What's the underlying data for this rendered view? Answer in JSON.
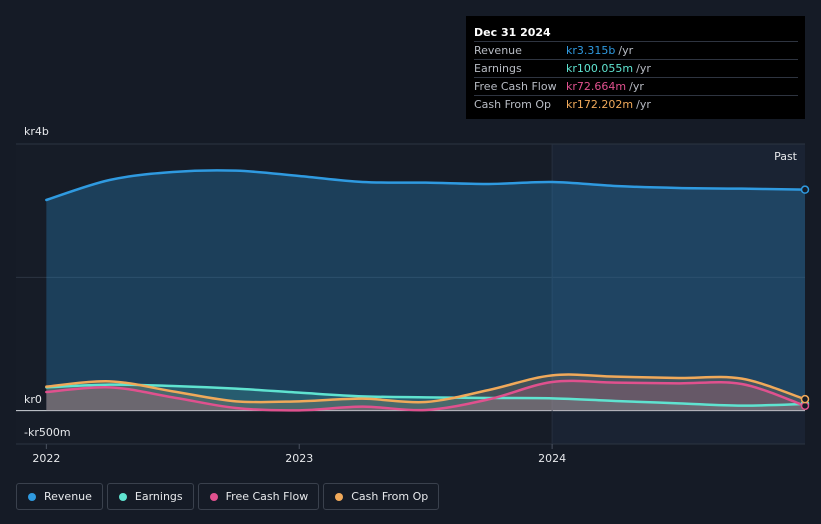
{
  "tooltip": {
    "date": "Dec 31 2024",
    "rows": [
      {
        "label": "Revenue",
        "value": "kr3.315b",
        "unit": "/yr",
        "color": "#2f9ae0"
      },
      {
        "label": "Earnings",
        "value": "kr100.055m",
        "unit": "/yr",
        "color": "#5fe3d0"
      },
      {
        "label": "Free Cash Flow",
        "value": "kr72.664m",
        "unit": "/yr",
        "color": "#e0518e"
      },
      {
        "label": "Cash From Op",
        "value": "kr172.202m",
        "unit": "/yr",
        "color": "#f0a95a"
      }
    ]
  },
  "past_label": "Past",
  "chart_data": {
    "type": "area",
    "x_ticks": [
      "2022",
      "2023",
      "2024"
    ],
    "y_ticks": [
      {
        "label": "kr4b",
        "value": 4000
      },
      {
        "label": "kr0",
        "value": 0
      },
      {
        "label": "-kr500m",
        "value": -500
      }
    ],
    "ylim": [
      -500,
      4000
    ],
    "xlim": [
      2021.88,
      2025.0
    ],
    "past_region_start": 2024.0,
    "grid": true,
    "legend_position": "bottom-left",
    "series": [
      {
        "name": "Revenue",
        "color": "#2f9ae0",
        "fill": true,
        "x": [
          2022.0,
          2022.25,
          2022.5,
          2022.75,
          2023.0,
          2023.25,
          2023.5,
          2023.75,
          2024.0,
          2024.25,
          2024.5,
          2024.75,
          2025.0
        ],
        "y": [
          3160,
          3460,
          3580,
          3600,
          3520,
          3430,
          3420,
          3400,
          3430,
          3370,
          3340,
          3330,
          3315
        ]
      },
      {
        "name": "Earnings",
        "color": "#5fe3d0",
        "fill": true,
        "x": [
          2022.0,
          2022.25,
          2022.5,
          2022.75,
          2023.0,
          2023.25,
          2023.5,
          2023.75,
          2024.0,
          2024.25,
          2024.5,
          2024.75,
          2025.0
        ],
        "y": [
          350,
          390,
          370,
          330,
          270,
          215,
          200,
          190,
          185,
          145,
          110,
          75,
          100
        ]
      },
      {
        "name": "Free Cash Flow",
        "color": "#e0518e",
        "fill": true,
        "x": [
          2022.0,
          2022.25,
          2022.5,
          2022.75,
          2023.0,
          2023.25,
          2023.5,
          2023.75,
          2024.0,
          2024.25,
          2024.5,
          2024.75,
          2025.0
        ],
        "y": [
          280,
          350,
          200,
          40,
          5,
          60,
          10,
          170,
          430,
          420,
          410,
          400,
          72.664
        ]
      },
      {
        "name": "Cash From Op",
        "color": "#f0a95a",
        "fill": true,
        "x": [
          2022.0,
          2022.25,
          2022.5,
          2022.75,
          2023.0,
          2023.25,
          2023.5,
          2023.75,
          2024.0,
          2024.25,
          2024.5,
          2024.75,
          2025.0
        ],
        "y": [
          360,
          440,
          290,
          140,
          140,
          180,
          130,
          310,
          530,
          510,
          490,
          480,
          172.202
        ]
      }
    ]
  }
}
